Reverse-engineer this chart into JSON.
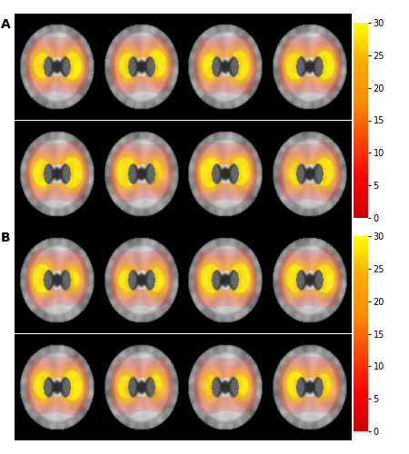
{
  "title_A": "A",
  "title_B": "B",
  "colorbar_vmin": 0,
  "colorbar_vmax": 30,
  "colorbar_ticks": [
    0,
    5,
    10,
    15,
    20,
    25,
    30
  ],
  "colorbar_ticklabels": [
    "0",
    "5",
    "10",
    "15",
    "20",
    "25",
    "30"
  ],
  "outer_bg_color": "#ffffff",
  "panel_bg_color": "#000000",
  "label_fontsize": 10,
  "tick_fontsize": 7,
  "figure_width": 4.5,
  "figure_height": 5.0,
  "nrows": 2,
  "ncols": 4
}
